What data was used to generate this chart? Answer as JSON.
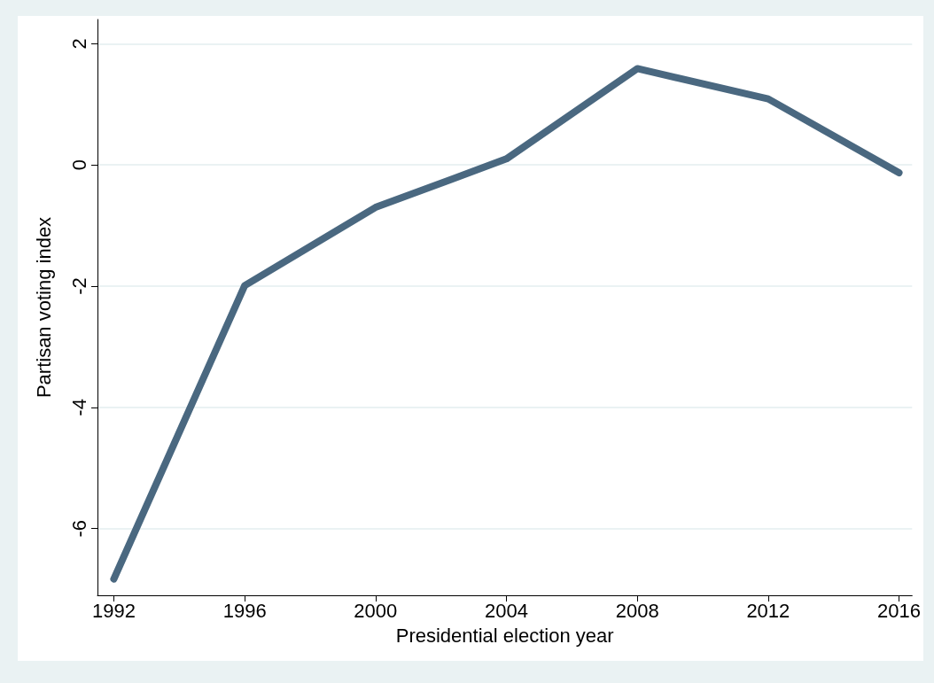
{
  "chart_data": {
    "type": "line",
    "xlabel": "Presidential election year",
    "ylabel": "Partisan voting index",
    "x": [
      1992,
      1996,
      2000,
      2004,
      2008,
      2012,
      2016
    ],
    "series": [
      {
        "color": "#4a6880",
        "values": [
          -6.83,
          -1.99,
          -0.7,
          0.1,
          1.59,
          1.09,
          -0.13
        ]
      }
    ],
    "xlim": [
      1991.5,
      2016.4
    ],
    "xticks": [
      1992,
      1996,
      2000,
      2004,
      2008,
      2012,
      2016
    ],
    "ylim": [
      -7.1,
      2.4
    ],
    "yticks": [
      -6,
      -4,
      -2,
      0,
      2
    ],
    "grid": "y",
    "line_style": "solid"
  }
}
